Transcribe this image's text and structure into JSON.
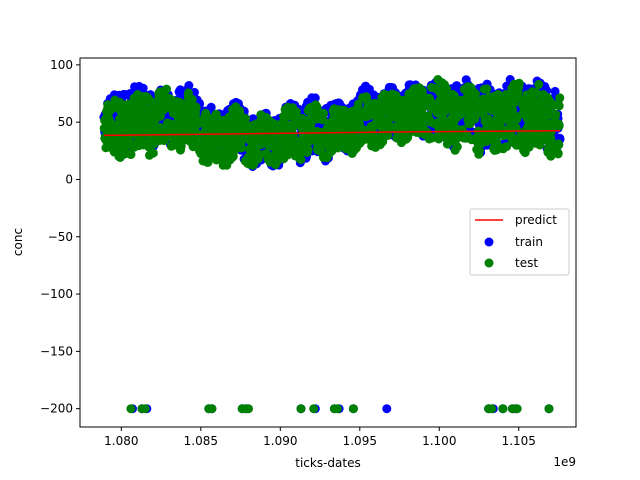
{
  "chart_data": {
    "type": "scatter",
    "title": "",
    "xlabel": "ticks-dates",
    "ylabel": "conc",
    "x_offset_label": "1e9",
    "xlim": [
      1.0774,
      1.1086
    ],
    "ylim": [
      -216,
      106
    ],
    "x_ticks": [
      1.08,
      1.085,
      1.09,
      1.095,
      1.1,
      1.105
    ],
    "x_tick_labels": [
      "1.080",
      "1.085",
      "1.090",
      "1.095",
      "1.100",
      "1.105"
    ],
    "y_ticks": [
      -200,
      -150,
      -100,
      -50,
      0,
      50,
      100
    ],
    "y_tick_labels": [
      "−200",
      "−150",
      "−100",
      "−50",
      "0",
      "50",
      "100"
    ],
    "grid": false,
    "legend": {
      "position": "center-right",
      "entries": [
        {
          "label": "predict",
          "kind": "line",
          "color": "#ff0000"
        },
        {
          "label": "train",
          "kind": "marker",
          "color": "#0000ff"
        },
        {
          "label": "test",
          "kind": "marker",
          "color": "#008000"
        }
      ]
    },
    "series": [
      {
        "name": "predict",
        "kind": "line",
        "color": "#ff0000",
        "x": [
          1.0789,
          1.086,
          1.093,
          1.1,
          1.1076
        ],
        "y": [
          38.5,
          39.6,
          40.8,
          41.8,
          42.6
        ]
      },
      {
        "name": "train",
        "kind": "scatter",
        "color": "#0000ff",
        "band": [
          [
            1.0789,
            40,
            78
          ],
          [
            1.0797,
            30,
            75
          ],
          [
            1.0805,
            28,
            80
          ],
          [
            1.0812,
            30,
            82
          ],
          [
            1.082,
            32,
            78
          ],
          [
            1.0828,
            30,
            75
          ],
          [
            1.0835,
            30,
            80
          ],
          [
            1.0842,
            34,
            82
          ],
          [
            1.085,
            24,
            70
          ],
          [
            1.0856,
            12,
            62
          ],
          [
            1.0862,
            18,
            58
          ],
          [
            1.087,
            22,
            68
          ],
          [
            1.0878,
            16,
            60
          ],
          [
            1.0886,
            14,
            56
          ],
          [
            1.0893,
            12,
            55
          ],
          [
            1.09,
            14,
            58
          ],
          [
            1.0907,
            16,
            68
          ],
          [
            1.0915,
            18,
            66
          ],
          [
            1.0922,
            20,
            70
          ],
          [
            1.093,
            20,
            68
          ],
          [
            1.0938,
            26,
            62
          ],
          [
            1.0946,
            28,
            70
          ],
          [
            1.0954,
            34,
            80
          ],
          [
            1.0962,
            36,
            78
          ],
          [
            1.097,
            36,
            78
          ],
          [
            1.0978,
            40,
            80
          ],
          [
            1.0986,
            42,
            82
          ],
          [
            1.0994,
            38,
            84
          ],
          [
            1.1002,
            36,
            80
          ],
          [
            1.101,
            30,
            85
          ],
          [
            1.1018,
            38,
            84
          ],
          [
            1.1026,
            22,
            83
          ],
          [
            1.1034,
            28,
            78
          ],
          [
            1.1042,
            30,
            84
          ],
          [
            1.105,
            28,
            86
          ],
          [
            1.1058,
            34,
            85
          ],
          [
            1.1066,
            30,
            82
          ],
          [
            1.1076,
            24,
            80
          ]
        ],
        "outliers_x": [
          1.0807,
          1.0813,
          1.0816,
          1.0855,
          1.0857,
          1.0876,
          1.0879,
          1.0913,
          1.0922,
          1.0934,
          1.0937,
          1.0946,
          1.0967,
          1.1031,
          1.1034,
          1.104,
          1.1046,
          1.1048,
          1.1069
        ],
        "outliers_y": -200
      },
      {
        "name": "test",
        "kind": "scatter",
        "color": "#008000",
        "band": [
          [
            1.0789,
            28,
            68
          ],
          [
            1.0797,
            18,
            66
          ],
          [
            1.0805,
            22,
            70
          ],
          [
            1.0812,
            26,
            72
          ],
          [
            1.082,
            24,
            78
          ],
          [
            1.0828,
            28,
            76
          ],
          [
            1.0835,
            26,
            74
          ],
          [
            1.0842,
            30,
            72
          ],
          [
            1.085,
            20,
            62
          ],
          [
            1.0856,
            10,
            58
          ],
          [
            1.0862,
            14,
            52
          ],
          [
            1.087,
            18,
            62
          ],
          [
            1.0878,
            16,
            58
          ],
          [
            1.0886,
            14,
            54
          ],
          [
            1.0893,
            14,
            52
          ],
          [
            1.09,
            16,
            56
          ],
          [
            1.0907,
            18,
            62
          ],
          [
            1.0915,
            20,
            60
          ],
          [
            1.0922,
            22,
            64
          ],
          [
            1.093,
            20,
            62
          ],
          [
            1.0938,
            24,
            58
          ],
          [
            1.0946,
            26,
            64
          ],
          [
            1.0954,
            30,
            70
          ],
          [
            1.0962,
            32,
            72
          ],
          [
            1.097,
            34,
            74
          ],
          [
            1.0978,
            36,
            76
          ],
          [
            1.0986,
            36,
            80
          ],
          [
            1.0994,
            34,
            82
          ],
          [
            1.1002,
            30,
            84
          ],
          [
            1.101,
            26,
            86
          ],
          [
            1.1018,
            32,
            82
          ],
          [
            1.1026,
            22,
            80
          ],
          [
            1.1034,
            24,
            76
          ],
          [
            1.1042,
            26,
            80
          ],
          [
            1.105,
            24,
            84
          ],
          [
            1.1058,
            30,
            82
          ],
          [
            1.1066,
            24,
            78
          ],
          [
            1.1076,
            18,
            72
          ]
        ],
        "outliers_x": [
          1.0806,
          1.0813,
          1.0815,
          1.0855,
          1.0857,
          1.0876,
          1.0878,
          1.088,
          1.0913,
          1.0921,
          1.0934,
          1.0936,
          1.0946,
          1.1031,
          1.1033,
          1.104,
          1.1046,
          1.1049,
          1.1069
        ],
        "outliers_y": -200
      }
    ]
  }
}
